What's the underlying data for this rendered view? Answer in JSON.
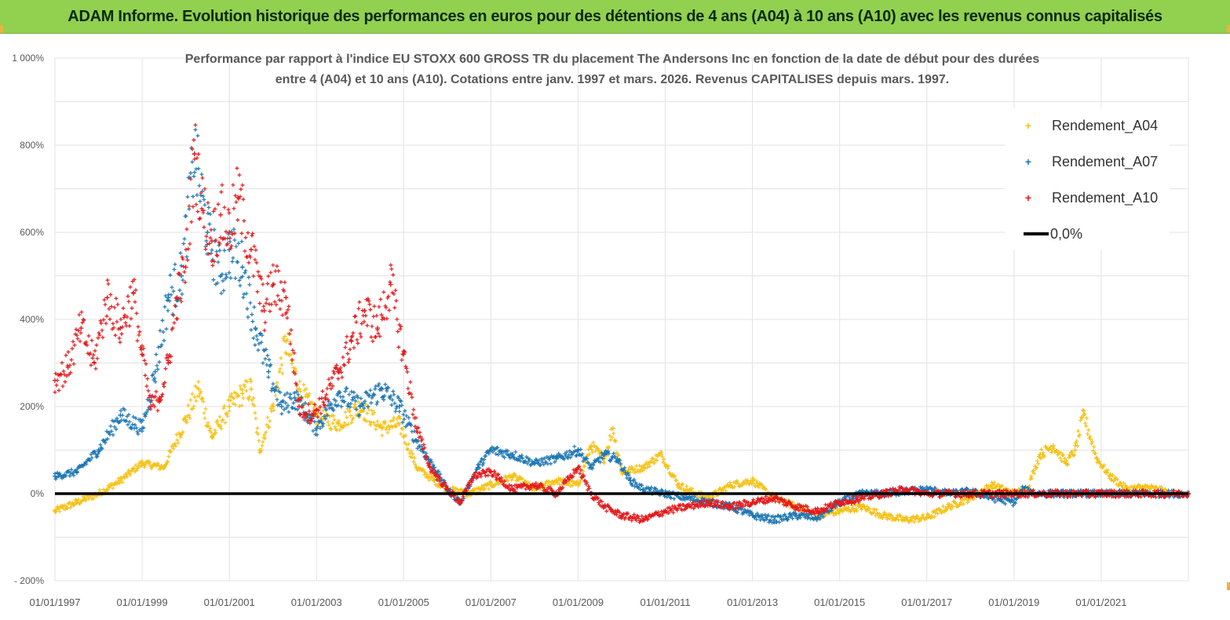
{
  "banner": {
    "title": "ADAM Informe. Evolution historique des performances en euros pour des détentions de 4 ans (A04) à 10 ans (A10) avec les revenus connus capitalisés",
    "background": "#92d050"
  },
  "chart_data": {
    "type": "scatter",
    "title_line1": "Performance par rapport à l'indice EU STOXX 600 GROSS TR  du placement The Andersons Inc en fonction de la date de début pour des durées",
    "title_line2": "entre 4 (A04) et 10 ans (A10). Cotations entre janv. 1997 et mars. 2026. Revenus CAPITALISES depuis mars. 1997.",
    "xlabel": "",
    "ylabel": "",
    "xlim": [
      1997.0,
      2023.0
    ],
    "ylim": [
      -200,
      1000
    ],
    "y_ticks": [
      {
        "value": -200,
        "label": "- 200%"
      },
      {
        "value": 0,
        "label": "0%"
      },
      {
        "value": 200,
        "label": "200%"
      },
      {
        "value": 400,
        "label": "400%"
      },
      {
        "value": 600,
        "label": "600%"
      },
      {
        "value": 800,
        "label": "800%"
      },
      {
        "value": 1000,
        "label": "1 000%"
      }
    ],
    "x_ticks": [
      {
        "value": 1997,
        "label": "01/01/1997"
      },
      {
        "value": 1999,
        "label": "01/01/1999"
      },
      {
        "value": 2001,
        "label": "01/01/2001"
      },
      {
        "value": 2003,
        "label": "01/01/2003"
      },
      {
        "value": 2005,
        "label": "01/01/2005"
      },
      {
        "value": 2007,
        "label": "01/01/2007"
      },
      {
        "value": 2009,
        "label": "01/01/2009"
      },
      {
        "value": 2011,
        "label": "01/01/2011"
      },
      {
        "value": 2013,
        "label": "01/01/2013"
      },
      {
        "value": 2015,
        "label": "01/01/2015"
      },
      {
        "value": 2017,
        "label": "01/01/2017"
      },
      {
        "value": 2019,
        "label": "01/01/2019"
      },
      {
        "value": 2021,
        "label": "01/01/2021"
      }
    ],
    "grid": true,
    "legend_position": "top-right",
    "series": [
      {
        "name": "Rendement_A04",
        "color": "#f5c218",
        "marker": "plus",
        "x": [
          1997.0,
          1997.5,
          1998.0,
          1998.5,
          1999.0,
          1999.5,
          2000.0,
          2000.3,
          2000.6,
          2001.0,
          2001.3,
          2001.5,
          2001.7,
          2002.0,
          2002.3,
          2002.6,
          2003.0,
          2003.5,
          2004.0,
          2004.5,
          2004.9,
          2005.3,
          2005.7,
          2006.0,
          2006.5,
          2007.0,
          2007.5,
          2008.0,
          2008.5,
          2009.0,
          2009.3,
          2009.6,
          2009.8,
          2010.0,
          2010.5,
          2010.9,
          2011.3,
          2011.7,
          2012.0,
          2012.5,
          2013.0,
          2013.5,
          2014.0,
          2014.5,
          2015.0,
          2015.5,
          2016.0,
          2016.5,
          2017.0,
          2017.5,
          2018.0,
          2018.5,
          2019.0,
          2019.3,
          2019.6,
          2019.9,
          2020.2,
          2020.4,
          2020.6,
          2020.9,
          2021.2,
          2021.6,
          2022.0,
          2022.5,
          2023.0
        ],
        "y": [
          -40,
          -20,
          0,
          30,
          70,
          60,
          170,
          240,
          130,
          200,
          230,
          240,
          100,
          200,
          350,
          240,
          180,
          160,
          200,
          150,
          160,
          60,
          30,
          10,
          0,
          20,
          40,
          10,
          30,
          20,
          110,
          80,
          150,
          50,
          60,
          90,
          20,
          0,
          -10,
          20,
          30,
          -10,
          -30,
          -50,
          -40,
          -30,
          -50,
          -60,
          -55,
          -30,
          -10,
          20,
          0,
          10,
          90,
          110,
          70,
          100,
          180,
          80,
          40,
          10,
          15,
          5,
          0
        ]
      },
      {
        "name": "Rendement_A07",
        "color": "#1f77b4",
        "marker": "plus",
        "x": [
          1997.0,
          1997.5,
          1998.0,
          1998.5,
          1999.0,
          1999.3,
          1999.6,
          1999.9,
          2000.2,
          2000.5,
          2000.8,
          2001.0,
          2001.3,
          2001.6,
          2001.9,
          2002.2,
          2002.5,
          2002.8,
          2003.0,
          2003.5,
          2004.0,
          2004.5,
          2004.9,
          2005.3,
          2005.7,
          2006.0,
          2006.3,
          2006.7,
          2007.0,
          2007.5,
          2008.0,
          2008.5,
          2009.0,
          2009.3,
          2009.6,
          2009.9,
          2010.2,
          2010.5,
          2011.0,
          2011.5,
          2012.0,
          2012.5,
          2013.0,
          2013.5,
          2014.0,
          2014.5,
          2015.0,
          2015.5,
          2016.0,
          2016.5,
          2017.0,
          2017.5,
          2018.0,
          2018.5,
          2019.0,
          2019.2,
          2019.5,
          2020.0,
          2021.0,
          2022.0,
          2023.0
        ],
        "y": [
          40,
          50,
          100,
          180,
          150,
          280,
          450,
          500,
          780,
          600,
          500,
          560,
          520,
          380,
          280,
          200,
          220,
          180,
          150,
          230,
          200,
          240,
          200,
          120,
          60,
          10,
          -20,
          60,
          100,
          90,
          70,
          80,
          100,
          60,
          90,
          80,
          30,
          10,
          0,
          -10,
          -20,
          -30,
          -50,
          -60,
          -50,
          -55,
          -20,
          0,
          0,
          5,
          10,
          0,
          5,
          -10,
          -20,
          10,
          0,
          0,
          0,
          0,
          0
        ]
      },
      {
        "name": "Rendement_A10",
        "color": "#e31a1c",
        "marker": "plus",
        "x": [
          1997.0,
          1997.3,
          1997.6,
          1997.9,
          1998.2,
          1998.5,
          1998.8,
          1999.0,
          1999.2,
          1999.4,
          1999.6,
          1999.8,
          2000.0,
          2000.2,
          2000.4,
          2000.6,
          2000.8,
          2001.0,
          2001.2,
          2001.5,
          2001.8,
          2002.0,
          2002.3,
          2002.6,
          2002.9,
          2003.2,
          2003.5,
          2003.8,
          2004.1,
          2004.4,
          2004.7,
          2005.0,
          2005.3,
          2005.6,
          2006.0,
          2006.3,
          2006.6,
          2007.0,
          2007.5,
          2008.0,
          2008.5,
          2009.0,
          2009.3,
          2009.6,
          2010.0,
          2010.5,
          2011.0,
          2011.5,
          2012.0,
          2012.5,
          2013.0,
          2013.5,
          2014.0,
          2014.5,
          2015.0,
          2015.5,
          2016.0,
          2016.5,
          2017.0,
          2018.0,
          2019.0,
          2020.0,
          2021.0,
          2022.0,
          2023.0
        ],
        "y": [
          260,
          290,
          380,
          300,
          450,
          380,
          460,
          320,
          200,
          220,
          300,
          450,
          520,
          780,
          650,
          580,
          640,
          600,
          680,
          560,
          420,
          480,
          450,
          200,
          180,
          220,
          280,
          350,
          420,
          380,
          480,
          320,
          150,
          60,
          10,
          -20,
          40,
          50,
          10,
          20,
          0,
          60,
          0,
          -30,
          -50,
          -60,
          -40,
          -30,
          -20,
          -30,
          -20,
          -10,
          -30,
          -40,
          -20,
          -10,
          0,
          10,
          0,
          0,
          0,
          0,
          0,
          0,
          0
        ]
      },
      {
        "name": "0,0%",
        "color": "#000000",
        "marker": "line",
        "x": [
          1997.0,
          2023.0
        ],
        "y": [
          0,
          0
        ]
      }
    ]
  }
}
